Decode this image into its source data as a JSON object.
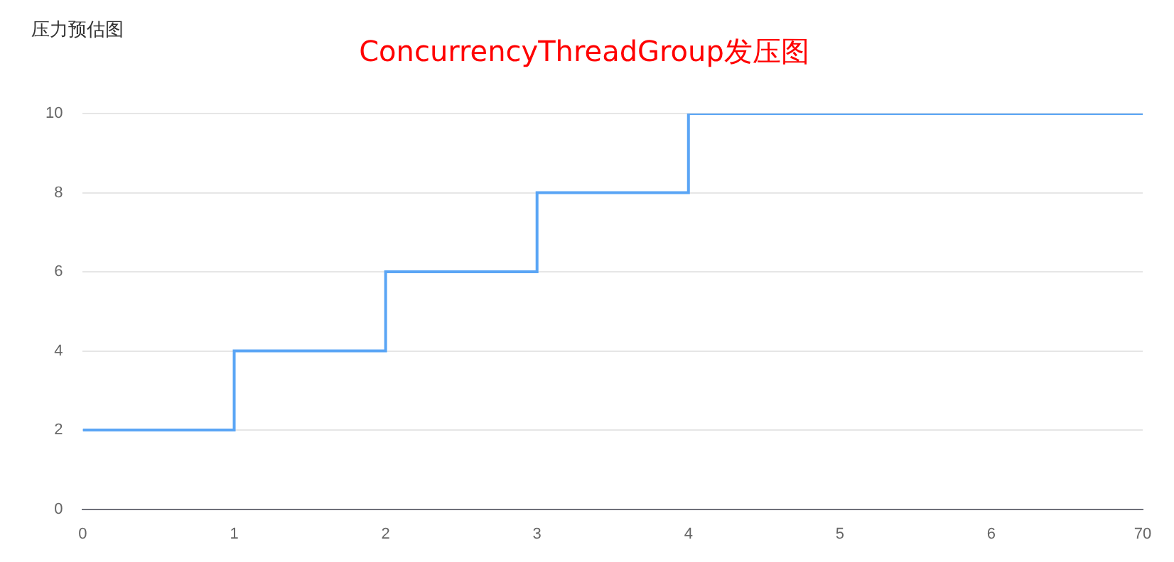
{
  "chart_data": {
    "type": "step",
    "subtitle": "压力预估图",
    "title": "ConcurrencyThreadGroup发压图",
    "categories": [
      "0",
      "1",
      "2",
      "3",
      "4",
      "5",
      "6",
      "70"
    ],
    "series": [
      {
        "color": "#5aa5f5",
        "values": [
          2,
          4,
          6,
          8,
          10,
          10,
          10,
          10
        ]
      }
    ],
    "ylim": [
      0,
      10
    ],
    "yticks": [
      0,
      2,
      4,
      6,
      8,
      10
    ],
    "grid": "y",
    "legend": false
  }
}
